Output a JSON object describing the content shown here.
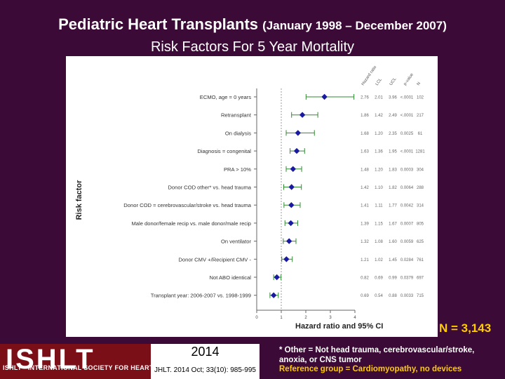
{
  "slide": {
    "title": "Pediatric Heart Transplants",
    "title_range": "(January 1998 – December 2007)",
    "subtitle": "Risk Factors For 5 Year Mortality",
    "n_label": "N = 3,143"
  },
  "footer": {
    "logo_text": "ISHLT",
    "logo_tagline": "ISHLT • INTERNATIONAL SOCIETY FOR HEART AND LUNG TRANSPLANTATION",
    "year": "2014",
    "citation": "JHLT. 2014 Oct; 33(10): 985-995",
    "footnote": "* Other = Not head trauma, cerebrovascular/stroke, anoxia, or CNS tumor",
    "reference_group": "Reference group = Cardiomyopathy, no devices"
  },
  "colors": {
    "background": "#3b0a36",
    "marker": "#1a1aa0",
    "ci_line": "#2e8b2e",
    "accent": "#ffcc00"
  },
  "chart_data": {
    "type": "forest",
    "title": "",
    "xlabel": "Hazard ratio and 95% CI",
    "ylabel": "Risk factor",
    "xlim": [
      0,
      4
    ],
    "xticks": [
      0,
      1,
      2,
      3,
      4
    ],
    "reference_line": 1,
    "column_headers": [
      "Hazard ratio",
      "LCL",
      "UCL",
      "p-value",
      "N"
    ],
    "rows": [
      {
        "label": "ECMO, age = 0 years",
        "hr": 2.76,
        "lcl": 2.01,
        "ucl": 3.96,
        "p": "<.0001",
        "n": "102"
      },
      {
        "label": "Retransplant",
        "hr": 1.86,
        "lcl": 1.42,
        "ucl": 2.49,
        "p": "<.0001",
        "n": "217"
      },
      {
        "label": "On dialysis",
        "hr": 1.68,
        "lcl": 1.2,
        "ucl": 2.35,
        "p": "0.0025",
        "n": "61"
      },
      {
        "label": "Diagnosis = congenital",
        "hr": 1.63,
        "lcl": 1.36,
        "ucl": 1.95,
        "p": "<.0001",
        "n": "1281"
      },
      {
        "label": "PRA > 10%",
        "hr": 1.48,
        "lcl": 1.2,
        "ucl": 1.83,
        "p": "0.0003",
        "n": "304"
      },
      {
        "label": "Donor COD other* vs. head trauma",
        "hr": 1.42,
        "lcl": 1.1,
        "ucl": 1.82,
        "p": "0.0064",
        "n": "288"
      },
      {
        "label": "Donor COD = cerebrovascular/stroke vs. head trauma",
        "hr": 1.41,
        "lcl": 1.11,
        "ucl": 1.77,
        "p": "0.0042",
        "n": "314"
      },
      {
        "label": "Male donor/female recip vs. male donor/male recip",
        "hr": 1.39,
        "lcl": 1.15,
        "ucl": 1.67,
        "p": "0.0007",
        "n": "805"
      },
      {
        "label": "On ventilator",
        "hr": 1.32,
        "lcl": 1.08,
        "ucl": 1.6,
        "p": "0.0059",
        "n": "625"
      },
      {
        "label": "Donor CMV +/Recipient CMV -",
        "hr": 1.21,
        "lcl": 1.02,
        "ucl": 1.45,
        "p": "0.0284",
        "n": "761"
      },
      {
        "label": "Not ABO identical",
        "hr": 0.82,
        "lcl": 0.69,
        "ucl": 0.99,
        "p": "0.0379",
        "n": "697"
      },
      {
        "label": "Transplant year: 2006-2007 vs. 1998-1999",
        "hr": 0.69,
        "lcl": 0.54,
        "ucl": 0.88,
        "p": "0.0033",
        "n": "715"
      }
    ]
  }
}
